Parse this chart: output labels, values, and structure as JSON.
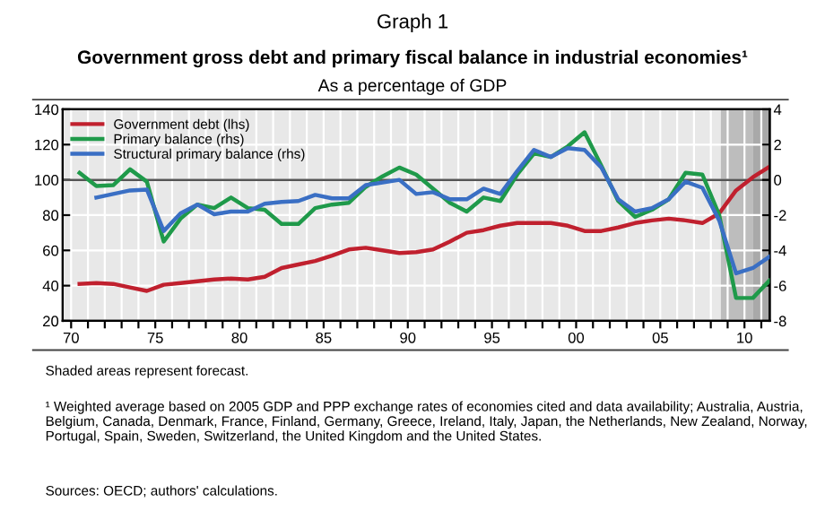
{
  "chart_data": {
    "type": "line",
    "title": "Government gross debt and primary fiscal balance in industrial economies¹",
    "subtitle": "As a percentage of GDP",
    "x": [
      1970.5,
      1971.5,
      1972.5,
      1973.5,
      1974.5,
      1975.5,
      1976.5,
      1977.5,
      1978.5,
      1979.5,
      1980.5,
      1981.5,
      1982.5,
      1983.5,
      1984.5,
      1985.5,
      1986.5,
      1987.5,
      1988.5,
      1989.5,
      1990.5,
      1991.5,
      1992.5,
      1993.5,
      1994.5,
      1995.5,
      1996.5,
      1997.5,
      1998.5,
      1999.5,
      2000.5,
      2001.5,
      2002.5,
      2003.5,
      2004.5,
      2005.5,
      2006.5,
      2007.5,
      2008.5,
      2009.5,
      2010.5,
      2011.5
    ],
    "series": [
      {
        "name": "Government debt (lhs)",
        "color": "#c0202e",
        "values": [
          41,
          41.5,
          41,
          39,
          37,
          40.5,
          41.5,
          42.5,
          43.5,
          44,
          43.5,
          45,
          50,
          52,
          54,
          57,
          60.5,
          61.5,
          60,
          58.5,
          59,
          60.5,
          65,
          70,
          71.5,
          74,
          75.5,
          75.5,
          75.5,
          74,
          71,
          71,
          73,
          75.5,
          77,
          78,
          77,
          75.5,
          81,
          94,
          101.5,
          107.5
        ]
      },
      {
        "name": "Primary balance (rhs)",
        "color": "#1f9a4a",
        "axis": "y2",
        "values": [
          0.4,
          -0.35,
          -0.3,
          0.6,
          -0.1,
          -3.5,
          -2.2,
          -1.4,
          -1.6,
          -1.0,
          -1.6,
          -1.7,
          -2.5,
          -2.5,
          -1.6,
          -1.4,
          -1.3,
          -0.4,
          0.2,
          0.7,
          0.3,
          -0.5,
          -1.3,
          -1.8,
          -1.0,
          -1.2,
          0.3,
          1.5,
          1.3,
          1.9,
          2.7,
          0.8,
          -1.2,
          -2.1,
          -1.7,
          -1.1,
          0.4,
          0.3,
          -2.0,
          -6.7,
          -6.7,
          -5.7
        ]
      },
      {
        "name": "Structural primary balance (rhs)",
        "color": "#3a6fc4",
        "axis": "y2",
        "values": [
          null,
          -1.0,
          -0.8,
          -0.6,
          -0.55,
          -2.9,
          -1.9,
          -1.4,
          -1.95,
          -1.8,
          -1.8,
          -1.35,
          -1.25,
          -1.2,
          -0.85,
          -1.05,
          -1.05,
          -0.3,
          -0.15,
          0.0,
          -0.8,
          -0.7,
          -1.1,
          -1.1,
          -0.5,
          -0.8,
          0.5,
          1.7,
          1.3,
          1.8,
          1.7,
          0.7,
          -1.1,
          -1.8,
          -1.6,
          -1.1,
          -0.1,
          -0.45,
          -2.3,
          -5.3,
          -5.0,
          -4.35
        ]
      }
    ],
    "xlim": [
      1969.5,
      2011.5
    ],
    "xticks": [
      {
        "value": 1970,
        "label": "70"
      },
      {
        "value": 1971,
        "label": null
      },
      {
        "value": 1972,
        "label": null
      },
      {
        "value": 1973,
        "label": null
      },
      {
        "value": 1974,
        "label": null
      },
      {
        "value": 1975,
        "label": "75"
      },
      {
        "value": 1976,
        "label": null
      },
      {
        "value": 1977,
        "label": null
      },
      {
        "value": 1978,
        "label": null
      },
      {
        "value": 1979,
        "label": null
      },
      {
        "value": 1980,
        "label": "80"
      },
      {
        "value": 1981,
        "label": null
      },
      {
        "value": 1982,
        "label": null
      },
      {
        "value": 1983,
        "label": null
      },
      {
        "value": 1984,
        "label": null
      },
      {
        "value": 1985,
        "label": "85"
      },
      {
        "value": 1986,
        "label": null
      },
      {
        "value": 1987,
        "label": null
      },
      {
        "value": 1988,
        "label": null
      },
      {
        "value": 1989,
        "label": null
      },
      {
        "value": 1990,
        "label": "90"
      },
      {
        "value": 1991,
        "label": null
      },
      {
        "value": 1992,
        "label": null
      },
      {
        "value": 1993,
        "label": null
      },
      {
        "value": 1994,
        "label": null
      },
      {
        "value": 1995,
        "label": "95"
      },
      {
        "value": 1996,
        "label": null
      },
      {
        "value": 1997,
        "label": null
      },
      {
        "value": 1998,
        "label": null
      },
      {
        "value": 1999,
        "label": null
      },
      {
        "value": 2000,
        "label": "00"
      },
      {
        "value": 2001,
        "label": null
      },
      {
        "value": 2002,
        "label": null
      },
      {
        "value": 2003,
        "label": null
      },
      {
        "value": 2004,
        "label": null
      },
      {
        "value": 2005,
        "label": "05"
      },
      {
        "value": 2006,
        "label": null
      },
      {
        "value": 2007,
        "label": null
      },
      {
        "value": 2008,
        "label": null
      },
      {
        "value": 2009,
        "label": null
      },
      {
        "value": 2010,
        "label": "10"
      },
      {
        "value": 2011,
        "label": null
      }
    ],
    "ylim": [
      20,
      140
    ],
    "yticks": [
      20,
      40,
      60,
      80,
      100,
      120,
      140
    ],
    "y2lim": [
      -8,
      4
    ],
    "y2ticks": [
      -8,
      -6,
      -4,
      -2,
      0,
      2,
      4
    ],
    "ref_lines": [
      {
        "axis": "y",
        "value": 100,
        "color": "#555555"
      }
    ],
    "bands": [
      {
        "axis": "x",
        "from": 2008.6,
        "to": 2010.5,
        "color": "#bdbdbd"
      },
      {
        "axis": "x",
        "from": 2010.5,
        "to": 2011.5,
        "color": "#a9a9a9"
      }
    ],
    "grid": true,
    "legend": "top left",
    "marker": "none",
    "line_style": "solid",
    "annotations": [
      "Graph 1",
      "Shaded areas represent forecast.",
      "¹ Weighted average based on 2005 GDP and PPP exchange rates of economies cited and data availability; Australia, Austria, Belgium, Canada, Denmark, France, Finland, Germany, Greece, Ireland, Italy, Japan, the Netherlands, New Zealand, Norway, Portugal, Spain, Sweden, Switzerland, the United Kingdom and the United States.",
      "Sources: OECD; authors' calculations."
    ]
  }
}
